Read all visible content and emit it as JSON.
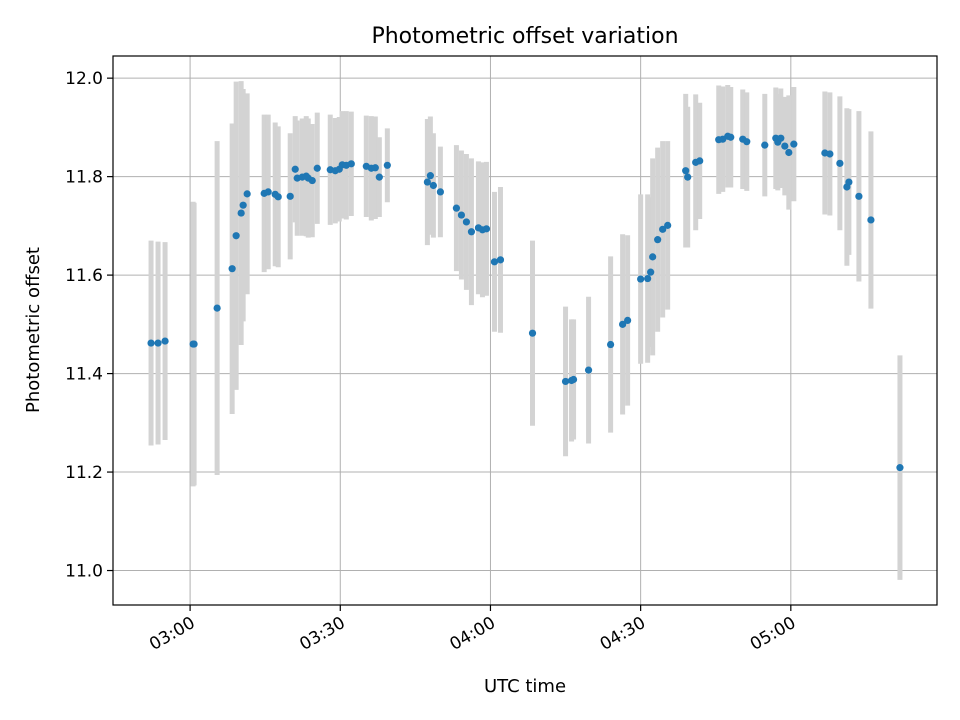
{
  "chart_data": {
    "type": "scatter",
    "title": "Photometric offset variation",
    "xlabel": "UTC time",
    "ylabel": "Photometric offset",
    "x_ticks": [
      "03:00",
      "03:30",
      "04:00",
      "04:30",
      "05:00"
    ],
    "y_ticks": [
      "11.0",
      "11.2",
      "11.4",
      "11.6",
      "11.8",
      "12.0"
    ],
    "xlim": [
      "02:44:36",
      "05:29:12"
    ],
    "ylim": [
      10.93,
      12.045
    ],
    "grid": true,
    "colors": {
      "points": "#1f77b4",
      "errorbars": "#d3d3d3",
      "grid": "#b0b0b0"
    },
    "series": [
      {
        "x": [
          "02:52:12",
          "02:53:36",
          "02:55:00",
          "03:00:36",
          "03:00:48",
          "03:05:24",
          "03:08:24",
          "03:09:12",
          "03:10:12",
          "03:10:36",
          "03:11:24",
          "03:14:48",
          "03:15:36",
          "03:17:00",
          "03:17:36",
          "03:20:00",
          "03:21:00",
          "03:21:24",
          "03:22:24",
          "03:23:12",
          "03:23:36",
          "03:24:24",
          "03:25:24",
          "03:28:00",
          "03:29:00",
          "03:29:48",
          "03:30:24",
          "03:31:12",
          "03:32:12",
          "03:35:12",
          "03:36:12",
          "03:37:00",
          "03:37:48",
          "03:39:24",
          "03:47:24",
          "03:48:00",
          "03:48:36",
          "03:50:00",
          "03:53:12",
          "03:54:12",
          "03:55:12",
          "03:56:12",
          "03:57:36",
          "03:58:24",
          "03:59:12",
          "04:00:48",
          "04:02:00",
          "04:08:24",
          "04:15:00",
          "04:16:12",
          "04:16:36",
          "04:19:36",
          "04:24:00",
          "04:26:24",
          "04:27:24",
          "04:30:00",
          "04:31:24",
          "04:32:00",
          "04:32:24",
          "04:33:24",
          "04:34:24",
          "04:35:24",
          "04:39:00",
          "04:39:24",
          "04:41:00",
          "04:41:48",
          "04:45:36",
          "04:46:24",
          "04:47:24",
          "04:48:00",
          "04:50:24",
          "04:51:12",
          "04:54:48",
          "04:57:00",
          "04:57:24",
          "04:58:00",
          "04:58:48",
          "04:59:36",
          "05:00:36",
          "05:06:48",
          "05:07:48",
          "05:09:48",
          "05:11:12",
          "05:11:36",
          "05:13:36",
          "05:16:00",
          "05:21:48"
        ],
        "y": [
          11.462,
          11.462,
          11.466,
          11.46,
          11.46,
          11.533,
          11.613,
          11.68,
          11.726,
          11.742,
          11.765,
          11.766,
          11.769,
          11.764,
          11.759,
          11.76,
          11.815,
          11.797,
          11.799,
          11.801,
          11.797,
          11.792,
          11.817,
          11.814,
          11.812,
          11.815,
          11.824,
          11.823,
          11.826,
          11.821,
          11.817,
          11.818,
          11.799,
          11.823,
          11.789,
          11.802,
          11.782,
          11.769,
          11.736,
          11.722,
          11.708,
          11.688,
          11.696,
          11.692,
          11.694,
          11.627,
          11.631,
          11.482,
          11.384,
          11.386,
          11.388,
          11.407,
          11.459,
          11.5,
          11.508,
          11.592,
          11.593,
          11.606,
          11.637,
          11.672,
          11.693,
          11.701,
          11.812,
          11.799,
          11.829,
          11.832,
          11.875,
          11.876,
          11.882,
          11.88,
          11.876,
          11.871,
          11.864,
          11.878,
          11.87,
          11.878,
          11.862,
          11.849,
          11.866,
          11.848,
          11.846,
          11.827,
          11.779,
          11.789,
          11.76,
          11.712,
          11.209
        ],
        "err": [
          0.208,
          0.206,
          0.201,
          0.289,
          0.287,
          0.339,
          0.295,
          0.313,
          0.268,
          0.236,
          0.204,
          0.16,
          0.157,
          0.146,
          0.143,
          0.128,
          0.108,
          0.117,
          0.119,
          0.122,
          0.121,
          0.115,
          0.113,
          0.112,
          0.107,
          0.106,
          0.109,
          0.11,
          0.106,
          0.103,
          0.106,
          0.104,
          0.081,
          0.075,
          0.128,
          0.12,
          0.106,
          0.092,
          0.128,
          0.131,
          0.138,
          0.149,
          0.135,
          0.137,
          0.136,
          0.142,
          0.148,
          0.188,
          0.152,
          0.124,
          0.122,
          0.149,
          0.179,
          0.183,
          0.173,
          0.172,
          0.171,
          0.152,
          0.2,
          0.187,
          0.179,
          0.171,
          0.156,
          0.143,
          0.138,
          0.118,
          0.11,
          0.107,
          0.104,
          0.102,
          0.101,
          0.1,
          0.104,
          0.103,
          0.098,
          0.101,
          0.1,
          0.116,
          0.116,
          0.125,
          0.125,
          0.136,
          0.16,
          0.148,
          0.173,
          0.18,
          0.228
        ]
      }
    ]
  }
}
